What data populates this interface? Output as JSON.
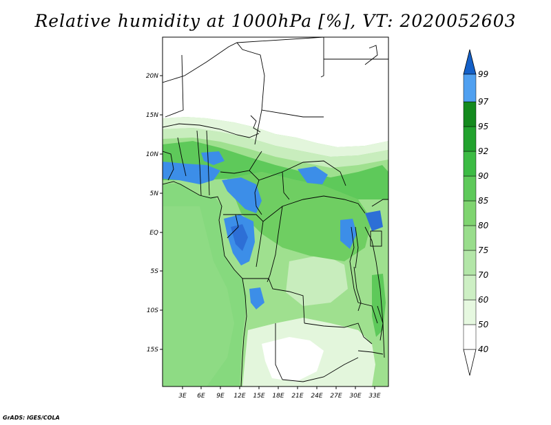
{
  "title": "Relative humidity at 1000hPa [%], VT: 2020052603",
  "credit": "GrADS: IGES/COLA",
  "map": {
    "lat_labels": [
      "20N",
      "15N",
      "10N",
      "5N",
      "EQ",
      "5S",
      "10S",
      "15S"
    ],
    "lon_labels": [
      "3E",
      "6E",
      "9E",
      "12E",
      "15E",
      "18E",
      "21E",
      "24E",
      "27E",
      "30E",
      "33E"
    ]
  },
  "colorbar": {
    "levels": [
      "40",
      "50",
      "60",
      "70",
      "75",
      "80",
      "85",
      "90",
      "92",
      "95",
      "97",
      "99"
    ],
    "colors": [
      "#ffffff",
      "#e6f8e0",
      "#cdefc4",
      "#b3e6a8",
      "#99dd8c",
      "#7fd470",
      "#5ec95a",
      "#3cbb44",
      "#22a22e",
      "#148a1e",
      "#50a0f0",
      "#2878dc",
      "#1460c8"
    ]
  },
  "colors": {
    "land_base": "#a6e39a",
    "ocean": "#86d97e",
    "blue_high": "#3c8ee8",
    "blue_higher": "#2d6fd6",
    "dry": "#ffffff"
  }
}
